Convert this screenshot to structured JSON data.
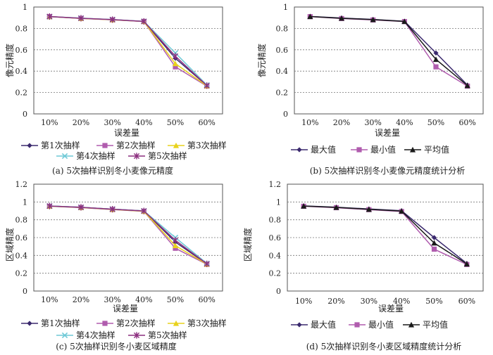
{
  "chart_data": [
    {
      "type": "line",
      "panel_caption": "(a) 5次抽样识别冬小麦像元精度",
      "xlabel": "误差量",
      "ylabel": "像元精度",
      "categories": [
        "10%",
        "20%",
        "30%",
        "40%",
        "50%",
        "60%"
      ],
      "ylim": [
        0,
        1
      ],
      "yticks": [
        "0",
        "0.2",
        "0.4",
        "0.6",
        "0.8",
        "1"
      ],
      "ytick_values": [
        0,
        0.2,
        0.4,
        0.6,
        0.8,
        1
      ],
      "grid": "horizontal dashed",
      "legend_position": "bottom",
      "legend_columns": 3,
      "series": [
        {
          "name": "第1次抽样",
          "values": [
            0.91,
            0.895,
            0.882,
            0.865,
            0.52,
            0.265
          ],
          "color": "#3b2a6e",
          "marker": "diamond"
        },
        {
          "name": "第2次抽样",
          "values": [
            0.91,
            0.893,
            0.88,
            0.865,
            0.44,
            0.26
          ],
          "color": "#b05cae",
          "marker": "square"
        },
        {
          "name": "第3次抽样",
          "values": [
            0.91,
            0.894,
            0.881,
            0.865,
            0.47,
            0.262
          ],
          "color": "#e8d21c",
          "marker": "triangle"
        },
        {
          "name": "第4次抽样",
          "values": [
            0.91,
            0.896,
            0.883,
            0.866,
            0.57,
            0.27
          ],
          "color": "#6ec9d6",
          "marker": "x"
        },
        {
          "name": "第5次抽样",
          "values": [
            0.911,
            0.895,
            0.882,
            0.865,
            0.54,
            0.265
          ],
          "color": "#8c2f7f",
          "marker": "star"
        }
      ]
    },
    {
      "type": "line",
      "panel_caption": "(b) 5次抽样识别冬小麦像元精度统计分析",
      "xlabel": "误差量",
      "ylabel": "像元精度",
      "categories": [
        "10%",
        "20%",
        "30%",
        "40%",
        "50%",
        "60%"
      ],
      "ylim": [
        0,
        1
      ],
      "yticks": [
        "0",
        "0.2",
        "0.4",
        "0.6",
        "0.8",
        "1"
      ],
      "ytick_values": [
        0,
        0.2,
        0.4,
        0.6,
        0.8,
        1
      ],
      "grid": "horizontal dashed",
      "legend_position": "bottom",
      "legend_columns": 3,
      "series": [
        {
          "name": "最大值",
          "values": [
            0.912,
            0.897,
            0.884,
            0.867,
            0.57,
            0.27
          ],
          "color": "#3b2a6e",
          "marker": "diamond"
        },
        {
          "name": "最小值",
          "values": [
            0.91,
            0.892,
            0.879,
            0.864,
            0.44,
            0.26
          ],
          "color": "#b05cae",
          "marker": "square"
        },
        {
          "name": "平均值",
          "values": [
            0.911,
            0.895,
            0.882,
            0.865,
            0.51,
            0.265
          ],
          "color": "#1a1a1a",
          "marker": "triangle"
        }
      ]
    },
    {
      "type": "line",
      "panel_caption": "(c) 5次抽样识别冬小麦区域精度",
      "xlabel": "误差量",
      "ylabel": "区域精度",
      "categories": [
        "10%",
        "20%",
        "30%",
        "40%",
        "50%",
        "60%"
      ],
      "ylim": [
        0,
        1.2
      ],
      "yticks": [
        "0",
        "0.2",
        "0.4",
        "0.6",
        "0.8",
        "1",
        "1.2"
      ],
      "ytick_values": [
        0,
        0.2,
        0.4,
        0.6,
        0.8,
        1,
        1.2
      ],
      "grid": "horizontal dashed",
      "legend_position": "bottom",
      "legend_columns": 3,
      "series": [
        {
          "name": "第1次抽样",
          "values": [
            0.955,
            0.94,
            0.92,
            0.9,
            0.55,
            0.305
          ],
          "color": "#3b2a6e",
          "marker": "diamond"
        },
        {
          "name": "第2次抽样",
          "values": [
            0.952,
            0.937,
            0.915,
            0.895,
            0.48,
            0.3
          ],
          "color": "#b05cae",
          "marker": "square"
        },
        {
          "name": "第3次抽样",
          "values": [
            0.953,
            0.938,
            0.917,
            0.896,
            0.51,
            0.302
          ],
          "color": "#e8d21c",
          "marker": "triangle"
        },
        {
          "name": "第4次抽样",
          "values": [
            0.955,
            0.94,
            0.92,
            0.9,
            0.6,
            0.31
          ],
          "color": "#6ec9d6",
          "marker": "x"
        },
        {
          "name": "第5次抽样",
          "values": [
            0.954,
            0.94,
            0.919,
            0.899,
            0.57,
            0.305
          ],
          "color": "#8c2f7f",
          "marker": "star"
        }
      ]
    },
    {
      "type": "line",
      "panel_caption": "(d) 5次抽样识别冬小麦区域精度统计分析",
      "xlabel": "误差量",
      "ylabel": "区域精度",
      "categories": [
        "10%",
        "20%",
        "30%",
        "40%",
        "50%",
        "60%"
      ],
      "ylim": [
        0,
        1.2
      ],
      "yticks": [
        "0",
        "0.2",
        "0.4",
        "0.6",
        "0.8",
        "1",
        "1.2"
      ],
      "ytick_values": [
        0,
        0.2,
        0.4,
        0.6,
        0.8,
        1,
        1.2
      ],
      "grid": "horizontal dashed",
      "legend_position": "bottom",
      "legend_columns": 3,
      "series": [
        {
          "name": "最大值",
          "values": [
            0.956,
            0.941,
            0.922,
            0.902,
            0.6,
            0.31
          ],
          "color": "#3b2a6e",
          "marker": "diamond"
        },
        {
          "name": "最小值",
          "values": [
            0.952,
            0.936,
            0.914,
            0.893,
            0.47,
            0.298
          ],
          "color": "#b05cae",
          "marker": "square"
        },
        {
          "name": "平均值",
          "values": [
            0.954,
            0.939,
            0.918,
            0.898,
            0.54,
            0.304
          ],
          "color": "#1a1a1a",
          "marker": "triangle"
        }
      ]
    }
  ]
}
